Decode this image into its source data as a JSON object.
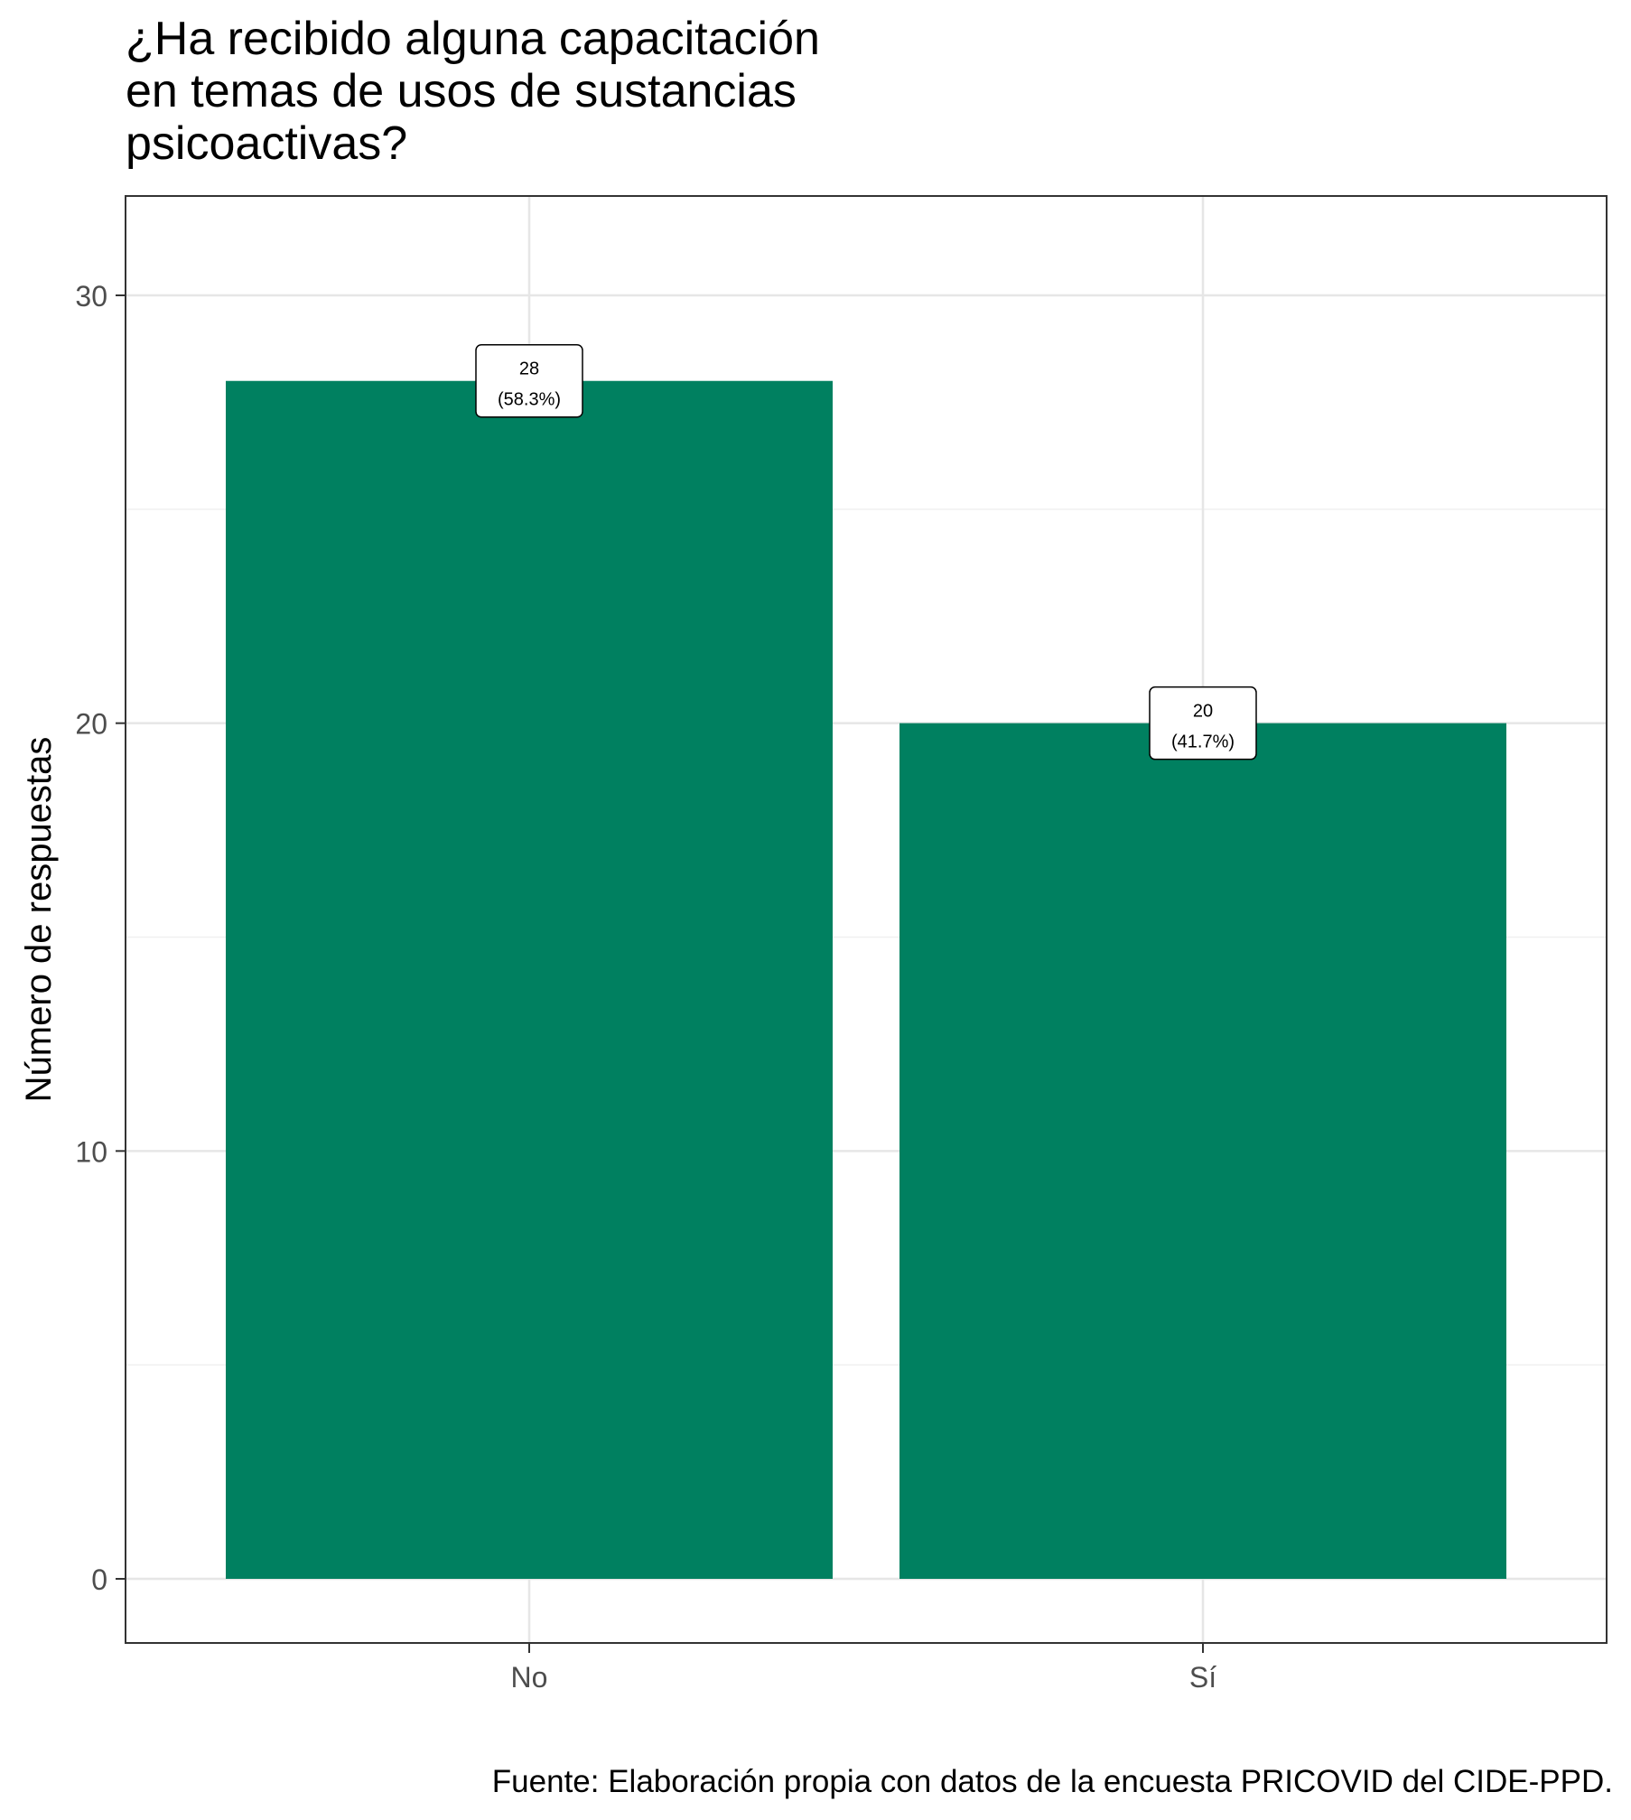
{
  "chart_data": {
    "type": "bar",
    "title": [
      "¿Ha recibido alguna capacitación",
      "en temas de usos de sustancias",
      "psicoactivas?"
    ],
    "xlabel": "",
    "ylabel": "Número de respuestas",
    "categories": [
      "No",
      "Sí"
    ],
    "values": [
      28,
      20
    ],
    "data_labels": [
      [
        "28",
        "(58.3%)"
      ],
      [
        "20",
        "(41.7%)"
      ]
    ],
    "yticks": [
      "0",
      "10",
      "20",
      "30"
    ],
    "ytick_values": [
      0,
      10,
      20,
      30
    ],
    "ylim": [
      -1.5,
      32.3
    ],
    "grid": true,
    "bar_color": "#008060",
    "caption": "Fuente: Elaboración propia con datos de la encuesta PRICOVID del CIDE-PPD."
  }
}
